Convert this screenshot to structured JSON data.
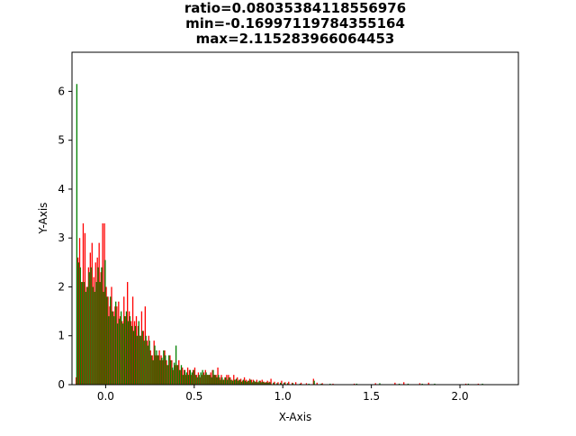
{
  "chart_data": {
    "type": "bar",
    "title": [
      "ratio=0.08035384118556976",
      "min=-0.16997119784355164",
      "max=2.115283966064453"
    ],
    "xlabel": "X-Axis",
    "ylabel": "Y-Axis",
    "xlim": [
      -0.19,
      2.33
    ],
    "ylim": [
      0,
      6.8
    ],
    "x_ticks": [
      0.0,
      0.5,
      1.0,
      1.5,
      2.0
    ],
    "x_tick_labels": [
      "0.0",
      "0.5",
      "1.0",
      "1.5",
      "2.0"
    ],
    "y_ticks": [
      0,
      1,
      2,
      3,
      4,
      5,
      6
    ],
    "y_tick_labels": [
      "0",
      "1",
      "2",
      "3",
      "4",
      "5",
      "6"
    ],
    "grid": false,
    "colors": {
      "red": "#ff0000",
      "green": "#008000",
      "axes": "#000000"
    },
    "series": [
      {
        "color": "#ff0000",
        "bins": [
          [
            -0.17,
            0.15
          ],
          [
            -0.16,
            2.6
          ],
          [
            -0.15,
            3.0
          ],
          [
            -0.14,
            2.1
          ],
          [
            -0.13,
            3.3
          ],
          [
            -0.12,
            3.1
          ],
          [
            -0.11,
            2.0
          ],
          [
            -0.1,
            2.4
          ],
          [
            -0.09,
            2.7
          ],
          [
            -0.08,
            2.9
          ],
          [
            -0.07,
            2.2
          ],
          [
            -0.06,
            2.5
          ],
          [
            -0.05,
            2.6
          ],
          [
            -0.04,
            2.9
          ],
          [
            -0.03,
            2.3
          ],
          [
            -0.02,
            3.3
          ],
          [
            -0.01,
            3.3
          ],
          [
            0.0,
            2.0
          ],
          [
            0.01,
            1.8
          ],
          [
            0.02,
            1.6
          ],
          [
            0.03,
            2.0
          ],
          [
            0.04,
            1.5
          ],
          [
            0.05,
            1.6
          ],
          [
            0.06,
            1.6
          ],
          [
            0.07,
            1.7
          ],
          [
            0.08,
            1.4
          ],
          [
            0.09,
            1.3
          ],
          [
            0.1,
            1.8
          ],
          [
            0.11,
            1.4
          ],
          [
            0.12,
            2.1
          ],
          [
            0.13,
            1.5
          ],
          [
            0.14,
            1.3
          ],
          [
            0.15,
            1.8
          ],
          [
            0.16,
            1.3
          ],
          [
            0.17,
            1.4
          ],
          [
            0.18,
            1.2
          ],
          [
            0.19,
            1.0
          ],
          [
            0.2,
            1.5
          ],
          [
            0.21,
            1.1
          ],
          [
            0.22,
            1.6
          ],
          [
            0.23,
            0.9
          ],
          [
            0.24,
            1.0
          ],
          [
            0.25,
            0.7
          ],
          [
            0.26,
            0.6
          ],
          [
            0.27,
            0.9
          ],
          [
            0.28,
            0.6
          ],
          [
            0.29,
            0.6
          ],
          [
            0.3,
            0.7
          ],
          [
            0.31,
            0.6
          ],
          [
            0.32,
            0.5
          ],
          [
            0.33,
            0.7
          ],
          [
            0.34,
            0.5
          ],
          [
            0.35,
            0.4
          ],
          [
            0.36,
            0.6
          ],
          [
            0.37,
            0.5
          ],
          [
            0.38,
            0.3
          ],
          [
            0.39,
            0.4
          ],
          [
            0.4,
            0.4
          ],
          [
            0.41,
            0.5
          ],
          [
            0.42,
            0.3
          ],
          [
            0.43,
            0.35
          ],
          [
            0.44,
            0.3
          ],
          [
            0.45,
            0.2
          ],
          [
            0.46,
            0.35
          ],
          [
            0.47,
            0.3
          ],
          [
            0.48,
            0.2
          ],
          [
            0.49,
            0.3
          ],
          [
            0.5,
            0.35
          ],
          [
            0.51,
            0.2
          ],
          [
            0.52,
            0.25
          ],
          [
            0.53,
            0.15
          ],
          [
            0.54,
            0.2
          ],
          [
            0.55,
            0.25
          ],
          [
            0.56,
            0.3
          ],
          [
            0.57,
            0.2
          ],
          [
            0.58,
            0.2
          ],
          [
            0.59,
            0.25
          ],
          [
            0.6,
            0.3
          ],
          [
            0.61,
            0.2
          ],
          [
            0.62,
            0.2
          ],
          [
            0.63,
            0.35
          ],
          [
            0.64,
            0.15
          ],
          [
            0.65,
            0.2
          ],
          [
            0.66,
            0.1
          ],
          [
            0.67,
            0.15
          ],
          [
            0.68,
            0.2
          ],
          [
            0.69,
            0.2
          ],
          [
            0.7,
            0.15
          ],
          [
            0.71,
            0.1
          ],
          [
            0.72,
            0.2
          ],
          [
            0.73,
            0.1
          ],
          [
            0.74,
            0.15
          ],
          [
            0.75,
            0.1
          ],
          [
            0.76,
            0.12
          ],
          [
            0.77,
            0.08
          ],
          [
            0.78,
            0.15
          ],
          [
            0.79,
            0.1
          ],
          [
            0.8,
            0.08
          ],
          [
            0.81,
            0.12
          ],
          [
            0.82,
            0.1
          ],
          [
            0.83,
            0.1
          ],
          [
            0.84,
            0.06
          ],
          [
            0.85,
            0.1
          ],
          [
            0.86,
            0.05
          ],
          [
            0.87,
            0.08
          ],
          [
            0.88,
            0.1
          ],
          [
            0.89,
            0.06
          ],
          [
            0.9,
            0.05
          ],
          [
            0.91,
            0.08
          ],
          [
            0.92,
            0.06
          ],
          [
            0.93,
            0.12
          ],
          [
            0.95,
            0.06
          ],
          [
            0.97,
            0.05
          ],
          [
            0.99,
            0.08
          ],
          [
            1.01,
            0.05
          ],
          [
            1.03,
            0.06
          ],
          [
            1.05,
            0.04
          ],
          [
            1.07,
            0.05
          ],
          [
            1.1,
            0.04
          ],
          [
            1.13,
            0.03
          ],
          [
            1.17,
            0.12
          ],
          [
            1.19,
            0.04
          ],
          [
            1.22,
            0.03
          ],
          [
            1.28,
            0.02
          ],
          [
            1.4,
            0.02
          ],
          [
            1.52,
            0.03
          ],
          [
            1.63,
            0.04
          ],
          [
            1.68,
            0.05
          ],
          [
            1.77,
            0.03
          ],
          [
            1.82,
            0.04
          ],
          [
            2.03,
            0.02
          ],
          [
            2.1,
            0.02
          ]
        ]
      },
      {
        "color": "#008000",
        "bins": [
          [
            -0.166,
            6.15
          ],
          [
            -0.156,
            2.5
          ],
          [
            -0.146,
            2.4
          ],
          [
            -0.136,
            2.1
          ],
          [
            -0.126,
            2.1
          ],
          [
            -0.116,
            1.9
          ],
          [
            -0.106,
            2.0
          ],
          [
            -0.096,
            2.3
          ],
          [
            -0.086,
            2.4
          ],
          [
            -0.076,
            2.0
          ],
          [
            -0.066,
            1.9
          ],
          [
            -0.056,
            2.1
          ],
          [
            -0.046,
            2.4
          ],
          [
            -0.036,
            2.1
          ],
          [
            -0.026,
            2.4
          ],
          [
            -0.016,
            1.9
          ],
          [
            -0.006,
            2.55
          ],
          [
            0.004,
            1.8
          ],
          [
            0.014,
            1.4
          ],
          [
            0.024,
            1.8
          ],
          [
            0.034,
            1.5
          ],
          [
            0.044,
            1.4
          ],
          [
            0.054,
            1.7
          ],
          [
            0.064,
            1.25
          ],
          [
            0.074,
            1.35
          ],
          [
            0.084,
            1.5
          ],
          [
            0.094,
            1.25
          ],
          [
            0.104,
            1.4
          ],
          [
            0.114,
            1.5
          ],
          [
            0.124,
            1.3
          ],
          [
            0.134,
            1.4
          ],
          [
            0.144,
            1.2
          ],
          [
            0.154,
            1.1
          ],
          [
            0.164,
            1.2
          ],
          [
            0.174,
            1.0
          ],
          [
            0.184,
            1.3
          ],
          [
            0.194,
            1.0
          ],
          [
            0.204,
            1.1
          ],
          [
            0.214,
            0.9
          ],
          [
            0.224,
            1.0
          ],
          [
            0.234,
            0.8
          ],
          [
            0.244,
            0.9
          ],
          [
            0.254,
            0.6
          ],
          [
            0.264,
            0.5
          ],
          [
            0.274,
            0.8
          ],
          [
            0.284,
            0.7
          ],
          [
            0.294,
            0.6
          ],
          [
            0.304,
            0.5
          ],
          [
            0.314,
            0.55
          ],
          [
            0.324,
            0.7
          ],
          [
            0.334,
            0.6
          ],
          [
            0.344,
            0.4
          ],
          [
            0.354,
            0.6
          ],
          [
            0.364,
            0.5
          ],
          [
            0.374,
            0.35
          ],
          [
            0.384,
            0.45
          ],
          [
            0.394,
            0.8
          ],
          [
            0.404,
            0.4
          ],
          [
            0.414,
            0.3
          ],
          [
            0.424,
            0.4
          ],
          [
            0.434,
            0.2
          ],
          [
            0.444,
            0.3
          ],
          [
            0.454,
            0.25
          ],
          [
            0.464,
            0.2
          ],
          [
            0.474,
            0.3
          ],
          [
            0.484,
            0.25
          ],
          [
            0.494,
            0.3
          ],
          [
            0.504,
            0.2
          ],
          [
            0.514,
            0.15
          ],
          [
            0.524,
            0.2
          ],
          [
            0.534,
            0.25
          ],
          [
            0.544,
            0.3
          ],
          [
            0.554,
            0.2
          ],
          [
            0.564,
            0.25
          ],
          [
            0.574,
            0.2
          ],
          [
            0.584,
            0.2
          ],
          [
            0.594,
            0.15
          ],
          [
            0.604,
            0.3
          ],
          [
            0.614,
            0.2
          ],
          [
            0.624,
            0.15
          ],
          [
            0.634,
            0.2
          ],
          [
            0.644,
            0.1
          ],
          [
            0.654,
            0.15
          ],
          [
            0.664,
            0.1
          ],
          [
            0.674,
            0.15
          ],
          [
            0.684,
            0.1
          ],
          [
            0.694,
            0.15
          ],
          [
            0.704,
            0.1
          ],
          [
            0.714,
            0.08
          ],
          [
            0.724,
            0.1
          ],
          [
            0.734,
            0.12
          ],
          [
            0.744,
            0.08
          ],
          [
            0.754,
            0.1
          ],
          [
            0.764,
            0.06
          ],
          [
            0.774,
            0.1
          ],
          [
            0.784,
            0.08
          ],
          [
            0.794,
            0.06
          ],
          [
            0.804,
            0.08
          ],
          [
            0.814,
            0.1
          ],
          [
            0.824,
            0.05
          ],
          [
            0.834,
            0.08
          ],
          [
            0.844,
            0.06
          ],
          [
            0.854,
            0.05
          ],
          [
            0.864,
            0.08
          ],
          [
            0.874,
            0.05
          ],
          [
            0.884,
            0.06
          ],
          [
            0.894,
            0.04
          ],
          [
            0.904,
            0.05
          ],
          [
            0.914,
            0.04
          ],
          [
            0.924,
            0.05
          ],
          [
            0.944,
            0.04
          ],
          [
            0.964,
            0.03
          ],
          [
            0.984,
            0.04
          ],
          [
            1.004,
            0.04
          ],
          [
            1.024,
            0.03
          ],
          [
            1.054,
            0.03
          ],
          [
            1.094,
            0.02
          ],
          [
            1.144,
            0.02
          ],
          [
            1.174,
            0.08
          ],
          [
            1.214,
            0.02
          ],
          [
            1.264,
            0.02
          ],
          [
            1.414,
            0.02
          ],
          [
            1.544,
            0.03
          ],
          [
            1.654,
            0.02
          ],
          [
            1.704,
            0.02
          ],
          [
            1.784,
            0.02
          ],
          [
            1.854,
            0.02
          ],
          [
            2.044,
            0.02
          ],
          [
            2.124,
            0.02
          ]
        ]
      }
    ]
  }
}
